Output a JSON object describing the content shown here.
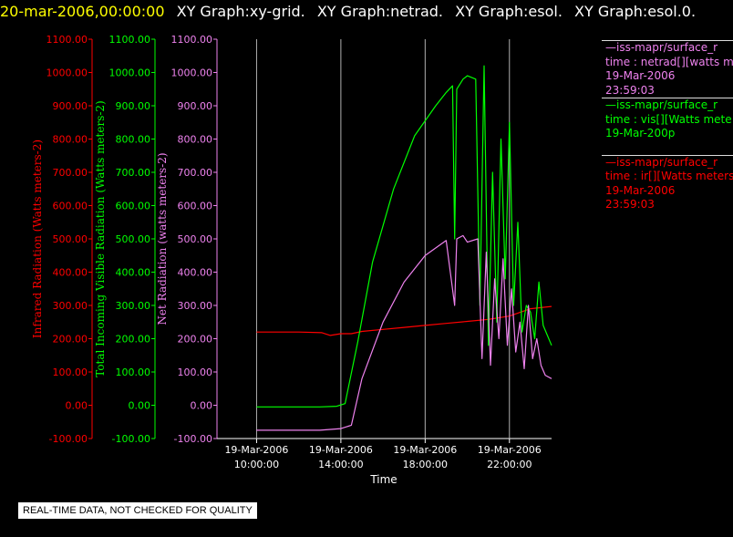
{
  "header": {
    "timestamp": "20-mar-2006,00:00:00",
    "graphs": [
      "XY Graph:xy-grid.",
      "XY Graph:netrad.",
      "XY Graph:esol.",
      "XY Graph:esol.0."
    ],
    "timestamp_color": "#ffff00",
    "graphs_color": "#ffffff"
  },
  "legend": [
    {
      "color": "#ee82ee",
      "lines": [
        "—iss-mapr/surface_r",
        "time : netrad[][watts m",
        "19-Mar-2006",
        "23:59:03"
      ]
    },
    {
      "color": "#00ff00",
      "lines": [
        "—iss-mapr/surface_r",
        "time : vis[][Watts mete",
        "19-Mar-200p"
      ]
    },
    {
      "color": "#ff0000",
      "lines": [
        "—iss-mapr/surface_r",
        "time : ir[][Watts meters",
        "19-Mar-2006",
        "23:59:03"
      ]
    }
  ],
  "notice": "REAL-TIME DATA, NOT CHECKED FOR QUALITY",
  "chart_data": {
    "type": "line",
    "xlabel": "Time",
    "x_ticks": [
      {
        "hour": 10,
        "date": "19-Mar-2006",
        "time": "10:00:00"
      },
      {
        "hour": 14,
        "date": "19-Mar-2006",
        "time": "14:00:00"
      },
      {
        "hour": 18,
        "date": "19-Mar-2006",
        "time": "18:00:00"
      },
      {
        "hour": 22,
        "date": "19-Mar-2006",
        "time": "22:00:00"
      }
    ],
    "xlim_hours": [
      6,
      24
    ],
    "grid": "vertical lines at time ticks",
    "axes": [
      {
        "label": "Infrared Radiation (Watts meters-2)",
        "color": "#ff0000",
        "ylim": [
          -100,
          1100
        ],
        "ticks": [
          "-100.00",
          "0.00",
          "100.00",
          "200.00",
          "300.00",
          "400.00",
          "500.00",
          "600.00",
          "700.00",
          "800.00",
          "900.00",
          "1000.00",
          "1100.00"
        ]
      },
      {
        "label": "Total Incoming Visible Radiation (Watts meters-2)",
        "color": "#00ff00",
        "ylim": [
          -100,
          1100
        ],
        "ticks": [
          "-100.00",
          "0.00",
          "100.00",
          "200.00",
          "300.00",
          "400.00",
          "500.00",
          "600.00",
          "700.00",
          "800.00",
          "900.00",
          "1000.00",
          "1100.00"
        ]
      },
      {
        "label": "Net Radiation (watts meters-2)",
        "color": "#ee82ee",
        "ylim": [
          -100,
          1100
        ],
        "ticks": [
          "-100.00",
          "0.00",
          "100.00",
          "200.00",
          "300.00",
          "400.00",
          "500.00",
          "600.00",
          "700.00",
          "800.00",
          "900.00",
          "1000.00",
          "1100.00"
        ]
      }
    ],
    "series": [
      {
        "color": "#ff0000",
        "hours": [
          10.0,
          12.0,
          13.1,
          13.5,
          14.0,
          14.5,
          15.0,
          16.0,
          17.0,
          18.0,
          19.0,
          20.0,
          21.0,
          22.0,
          23.0,
          24.0
        ],
        "values": [
          220,
          220,
          218,
          210,
          215,
          215,
          222,
          228,
          234,
          240,
          246,
          252,
          258,
          268,
          290,
          297
        ]
      },
      {
        "color": "#00ff00",
        "hours": [
          10.0,
          13.0,
          13.8,
          14.2,
          14.8,
          15.5,
          16.5,
          17.5,
          18.5,
          19.0,
          19.3,
          19.4,
          19.5,
          19.8,
          20.0,
          20.4,
          20.6,
          20.8,
          21.0,
          21.2,
          21.4,
          21.6,
          21.8,
          22.0,
          22.2,
          22.4,
          22.6,
          22.8,
          23.0,
          23.2,
          23.4,
          23.6,
          23.8,
          24.0
        ],
        "values": [
          -5,
          -5,
          -3,
          5,
          190,
          430,
          650,
          810,
          900,
          940,
          960,
          500,
          950,
          980,
          990,
          980,
          300,
          1020,
          180,
          700,
          250,
          800,
          380,
          850,
          300,
          550,
          220,
          300,
          280,
          200,
          370,
          240,
          210,
          180
        ]
      },
      {
        "color": "#ee82ee",
        "hours": [
          10.0,
          13.0,
          14.0,
          14.5,
          15.0,
          16.0,
          17.0,
          18.0,
          19.0,
          19.4,
          19.5,
          19.8,
          20.0,
          20.5,
          20.7,
          20.9,
          21.1,
          21.3,
          21.5,
          21.7,
          21.9,
          22.1,
          22.3,
          22.5,
          22.7,
          22.9,
          23.1,
          23.3,
          23.5,
          23.7,
          24.0
        ],
        "values": [
          -75,
          -75,
          -70,
          -60,
          80,
          250,
          370,
          450,
          495,
          300,
          500,
          510,
          490,
          500,
          140,
          460,
          120,
          380,
          200,
          440,
          180,
          350,
          160,
          250,
          110,
          300,
          140,
          200,
          120,
          90,
          80
        ]
      }
    ]
  }
}
